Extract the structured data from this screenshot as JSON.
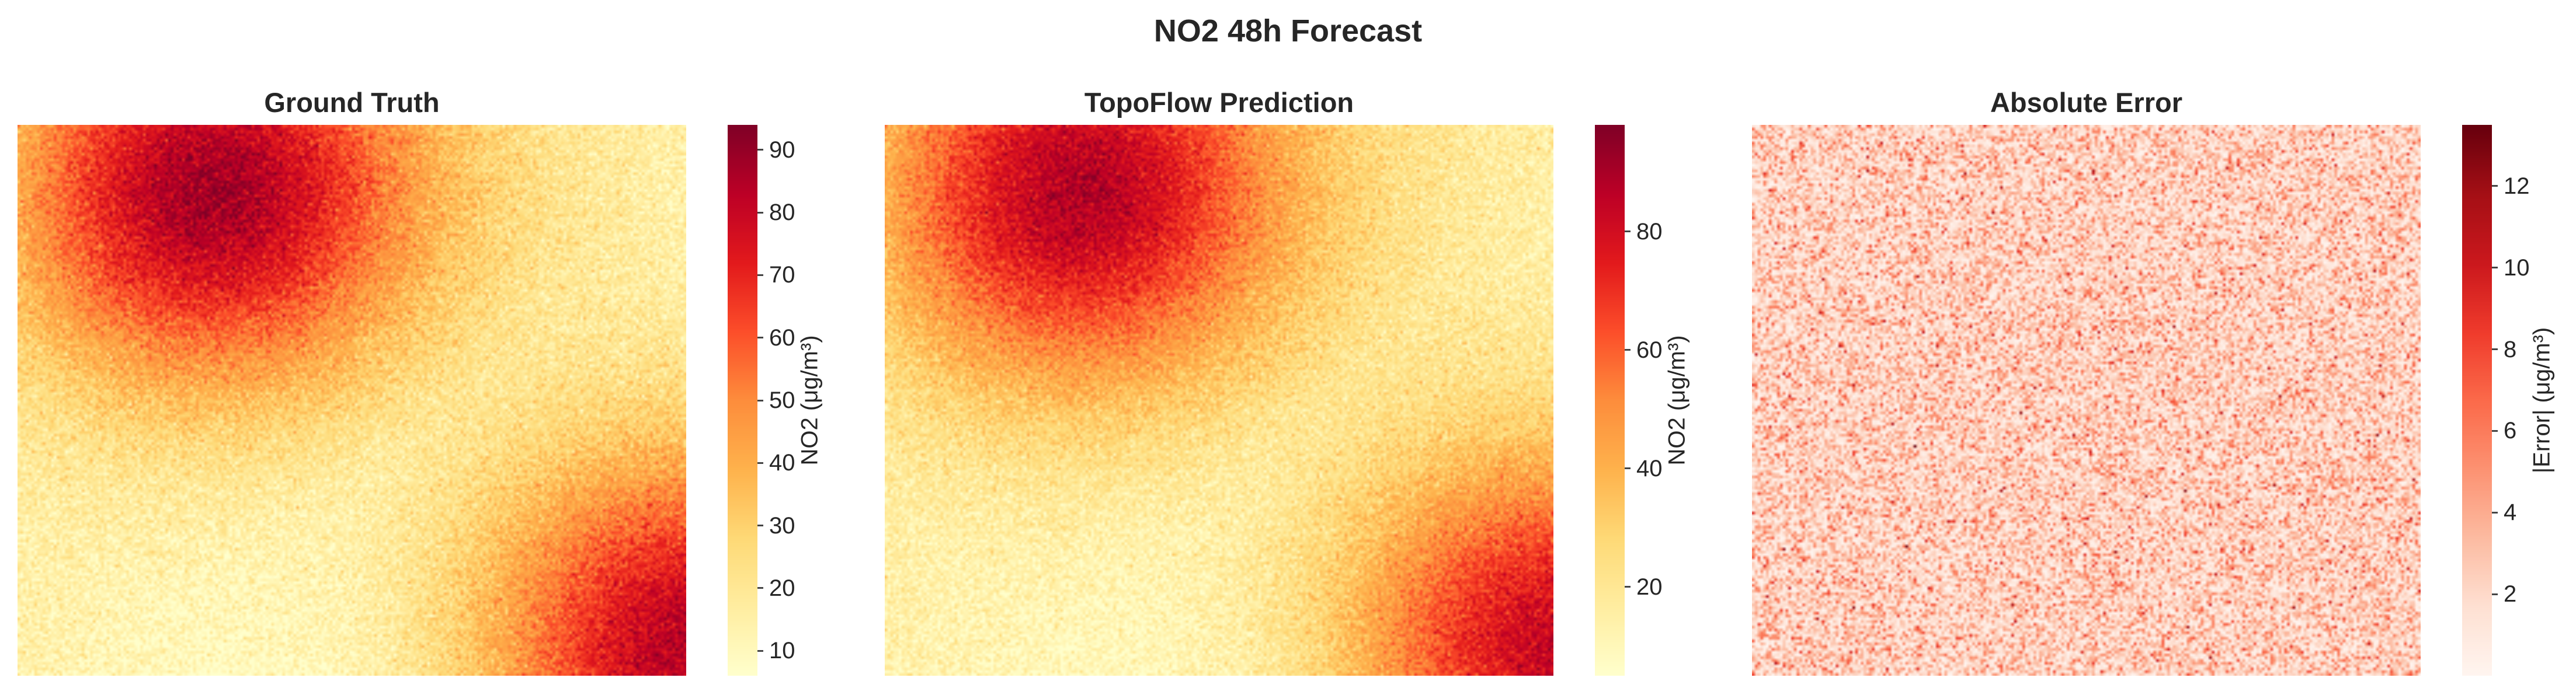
{
  "figure": {
    "title": "NO2 48h Forecast"
  },
  "chart_data": [
    {
      "type": "heatmap",
      "title": "Ground Truth",
      "colormap": "YlOrRd",
      "grid": false,
      "field": "diagonal two-lobe pattern: high values top-left and bottom-right, low values top-right and bottom-left, with per-cell noise",
      "value_range": [
        6,
        94
      ],
      "colorbar": {
        "label": "NO2 (μg/m³)",
        "ticks": [
          10,
          20,
          30,
          40,
          50,
          60,
          70,
          80,
          90
        ],
        "range": [
          6,
          94
        ]
      }
    },
    {
      "type": "heatmap",
      "title": "TopoFlow Prediction",
      "colormap": "YlOrRd",
      "grid": false,
      "field": "diagonal two-lobe pattern: high values top-left and bottom-right, low values top-right and bottom-left, with per-cell noise",
      "value_range": [
        5,
        98
      ],
      "colorbar": {
        "label": "NO2 (μg/m³)",
        "ticks": [
          20,
          40,
          60,
          80
        ],
        "range": [
          5,
          98
        ]
      }
    },
    {
      "type": "heatmap",
      "title": "Absolute Error",
      "colormap": "Reds",
      "grid": false,
      "field": "spatially uniform random noise, mostly low values",
      "value_range": [
        0,
        13.5
      ],
      "colorbar": {
        "label": "|Error| (μg/m³)",
        "ticks": [
          2,
          4,
          6,
          8,
          10,
          12
        ],
        "range": [
          0,
          13.5
        ]
      }
    }
  ]
}
